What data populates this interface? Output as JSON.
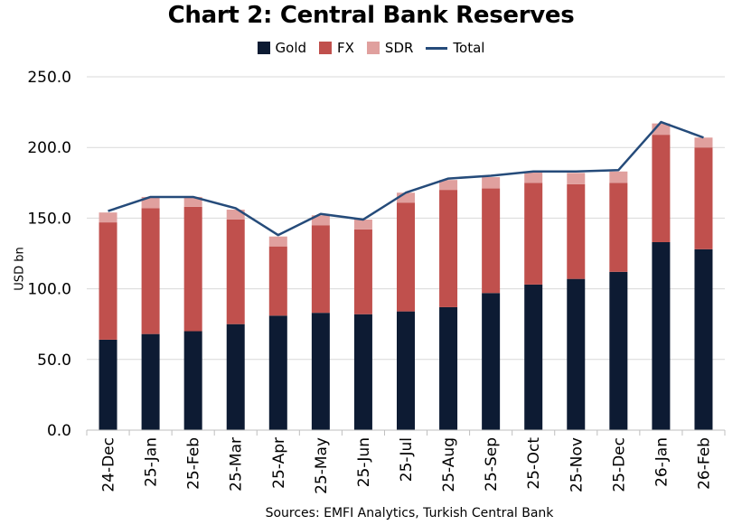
{
  "title": "Chart 2: Central Bank Reserves",
  "source": "Sources: EMFI Analytics, Turkish Central Bank",
  "colors": {
    "gold": "#0d1b33",
    "fx": "#c0504d",
    "sdr": "#e0a09e",
    "total": "#254b7a",
    "grid": "#d9d9d9"
  },
  "chart_data": {
    "type": "bar",
    "stacked": true,
    "title": "Chart 2: Central Bank Reserves",
    "xlabel": "",
    "ylabel": "USD bn",
    "ylim": [
      0,
      250
    ],
    "yticks": [
      "0.0",
      "50.0",
      "100.0",
      "150.0",
      "200.0",
      "250.0"
    ],
    "grid": true,
    "legend_position": "top",
    "categories": [
      "24-Dec",
      "25-Jan",
      "25-Feb",
      "25-Mar",
      "25-Apr",
      "25-May",
      "25-Jun",
      "25-Jul",
      "25-Aug",
      "25-Sep",
      "25-Oct",
      "25-Nov",
      "25-Dec",
      "26-Jan",
      "26-Feb"
    ],
    "series": [
      {
        "name": "Gold",
        "kind": "bar",
        "values": [
          64,
          68,
          70,
          75,
          81,
          83,
          82,
          84,
          87,
          97,
          103,
          107,
          112,
          133,
          128
        ]
      },
      {
        "name": "FX",
        "kind": "bar",
        "values": [
          83,
          89,
          88,
          74,
          49,
          62,
          60,
          77,
          83,
          74,
          72,
          67,
          63,
          76,
          72
        ]
      },
      {
        "name": "SDR",
        "kind": "bar",
        "values": [
          7,
          8,
          7,
          7,
          7,
          7,
          7,
          7,
          7,
          8,
          8,
          8,
          8,
          8,
          7
        ]
      },
      {
        "name": "Total",
        "kind": "line",
        "values": [
          155,
          165,
          165,
          157,
          138,
          153,
          149,
          168,
          178,
          180,
          183,
          183,
          184,
          218,
          207
        ]
      }
    ]
  }
}
